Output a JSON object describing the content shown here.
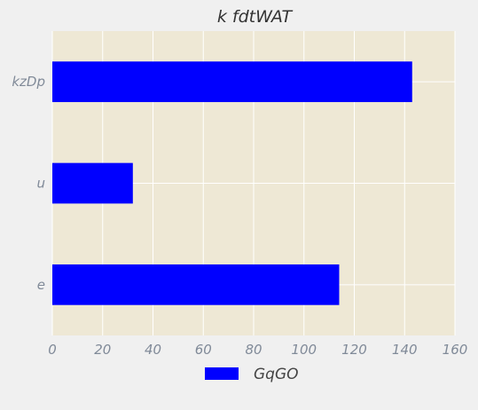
{
  "chart_data": {
    "type": "bar",
    "orientation": "horizontal",
    "title": "k fdtWAT",
    "xlabel": "",
    "ylabel": "",
    "categories": [
      "kzDp",
      "u",
      "e"
    ],
    "series": [
      {
        "name": "GqGO",
        "values": [
          143,
          32,
          114
        ]
      }
    ],
    "xlim": [
      0,
      160
    ],
    "xticks": [
      0,
      20,
      40,
      60,
      80,
      100,
      120,
      140,
      160
    ],
    "grid": true,
    "legend_position": "bottom-center",
    "colors": {
      "bar": "#0000ff",
      "plot_background": "#eee8d5",
      "figure_background": "#f0f0f0",
      "grid": "#ffffff"
    }
  }
}
